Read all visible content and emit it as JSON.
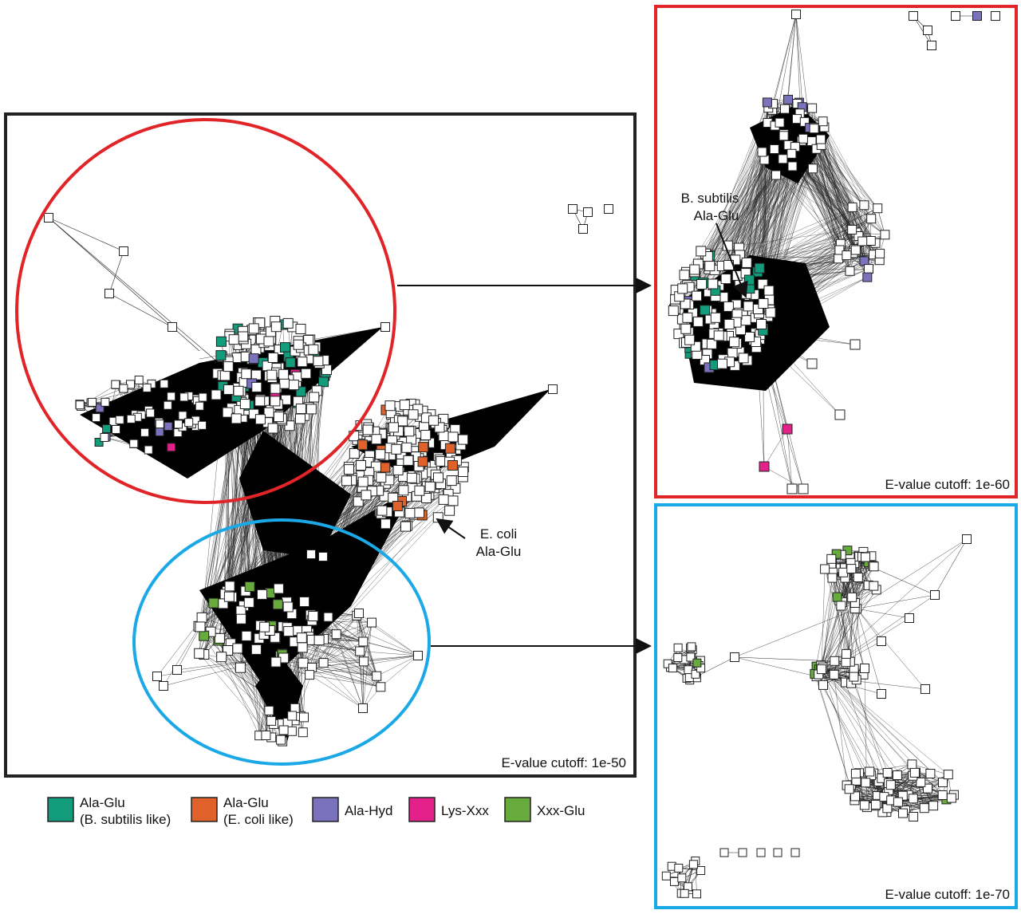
{
  "panels": {
    "main": {
      "cutoff_label": "E-value cutoff: 1e-50",
      "border_color": "#222222"
    },
    "red_zoom": {
      "cutoff_label": "E-value cutoff: 1e-60",
      "border_color": "#e02428"
    },
    "blue_zoom": {
      "cutoff_label": "E-value cutoff: 1e-70",
      "border_color": "#1aa9e6"
    }
  },
  "annotations": {
    "ecoli": {
      "line1": "E. coli",
      "line2": "Ala-Glu"
    },
    "bsubtilis": {
      "line1": "B. subtilis",
      "line2": "Ala-Glu"
    }
  },
  "legend": [
    {
      "line1": "Ala-Glu",
      "line2": "(B. subtilis like)",
      "color": "#139c7c"
    },
    {
      "line1": "Ala-Glu",
      "line2": "(E. coli like)",
      "color": "#e0622a"
    },
    {
      "line1": "Ala-Hyd",
      "line2": "",
      "color": "#7a72bc"
    },
    {
      "line1": "Lys-Xxx",
      "line2": "",
      "color": "#e4218b"
    },
    {
      "line1": "Xxx-Glu",
      "line2": "",
      "color": "#66ab3c"
    }
  ]
}
